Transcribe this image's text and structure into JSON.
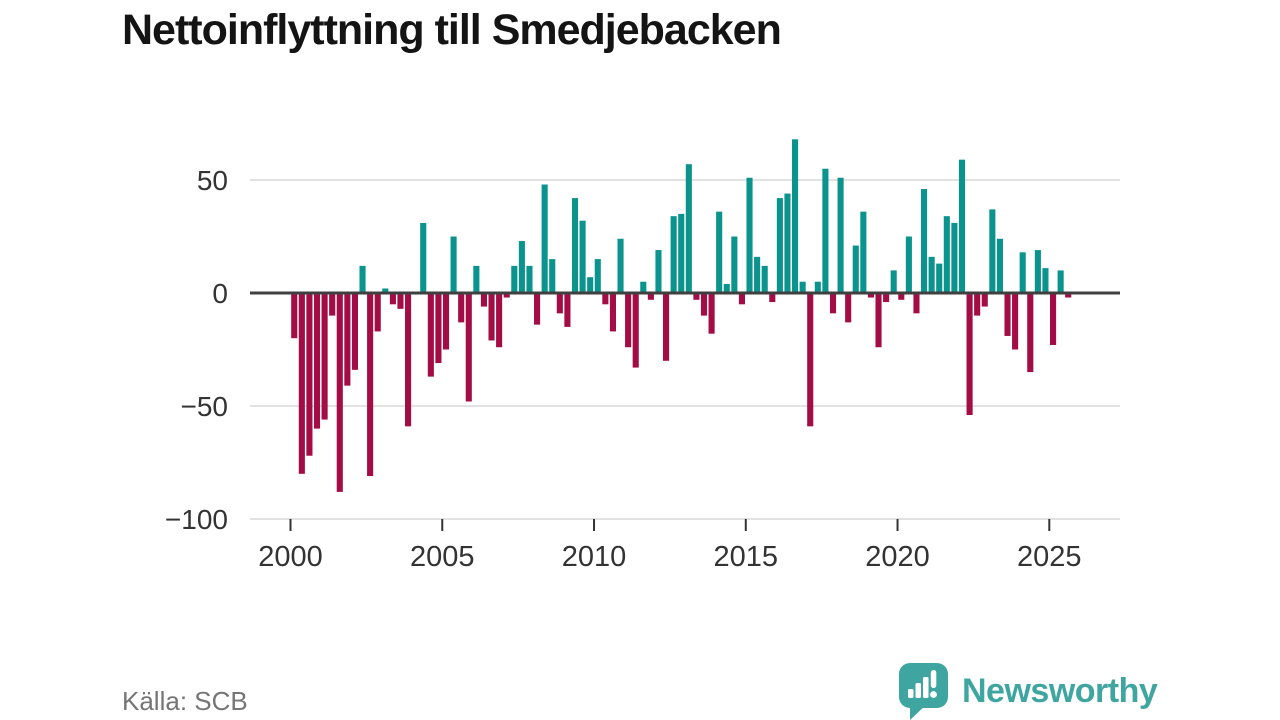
{
  "title": "Nettoinflyttning till Smedjebacken",
  "source": "Källa: SCB",
  "brand": {
    "name": "Newsworthy"
  },
  "colors": {
    "title": "#141414",
    "axis": "#3f3f3f",
    "grid": "#e2e2e2",
    "tick_label": "#333333",
    "source_text": "#757575",
    "brand_teal": "#3fa5a0"
  },
  "chart_data": {
    "type": "bar",
    "title": "Nettoinflyttning till Smedjebacken",
    "frequency": "quarterly",
    "start": "2000-Q1",
    "end": "2025-Q3",
    "ylim": [
      -100,
      70
    ],
    "grid": "horizontal",
    "legend": "none",
    "y_ticks": [
      50,
      0,
      -50,
      -100
    ],
    "x_ticks": [
      "2000",
      "2005",
      "2010",
      "2015",
      "2020",
      "2025"
    ],
    "bars_per_x_tick": 20,
    "colors": {
      "positive": "#0b948d",
      "negative": "#a30c44"
    },
    "values": [
      -20,
      -80,
      -72,
      -60,
      -56,
      -10,
      -88,
      -41,
      -34,
      12,
      -81,
      -17,
      2,
      -5,
      -7,
      -59,
      0,
      31,
      -37,
      -31,
      -25,
      25,
      -13,
      -48,
      12,
      -6,
      -21,
      -24,
      -2,
      12,
      23,
      12,
      -14,
      48,
      15,
      -9,
      -15,
      42,
      32,
      7,
      15,
      -5,
      -17,
      24,
      -24,
      -33,
      5,
      -3,
      19,
      -30,
      34,
      35,
      57,
      -3,
      -10,
      -18,
      36,
      4,
      25,
      -5,
      51,
      16,
      12,
      -4,
      42,
      44,
      68,
      5,
      -59,
      5,
      55,
      -9,
      51,
      -13,
      21,
      36,
      -2,
      -24,
      -4,
      10,
      -3,
      25,
      -9,
      46,
      16,
      13,
      34,
      31,
      59,
      -54,
      -10,
      -6,
      37,
      24,
      -19,
      -25,
      18,
      -35,
      19,
      11,
      -23,
      10,
      -2
    ]
  }
}
